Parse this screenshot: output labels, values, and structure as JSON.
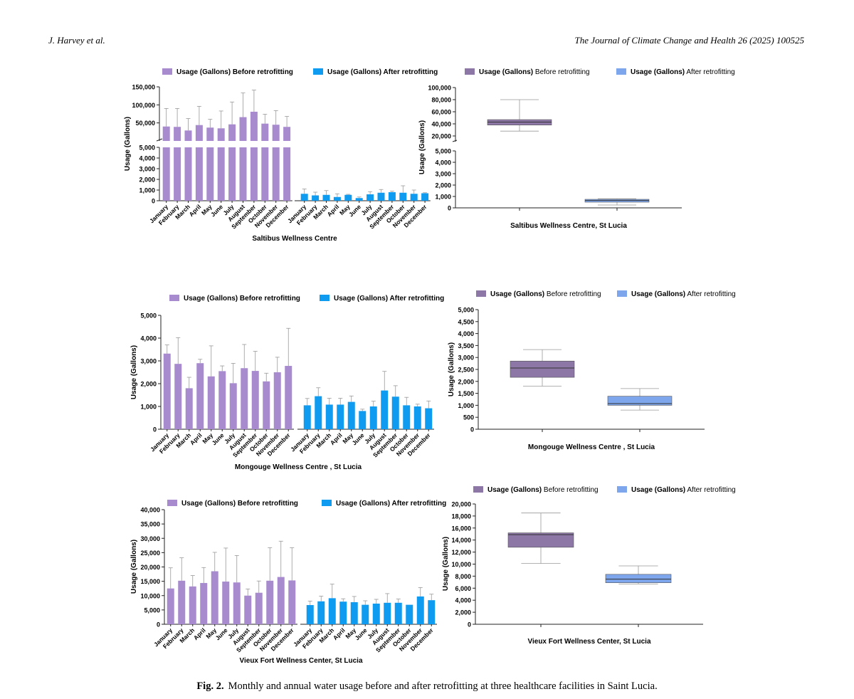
{
  "header": {
    "left": "J. Harvey et al.",
    "right": "The Journal of Climate Change and Health 26 (2025) 100525"
  },
  "caption": {
    "label": "Fig. 2.",
    "text": "Monthly and annual water usage before and after retrofitting at three healthcare facilities in Saint Lucia."
  },
  "colors": {
    "bar_before": "#a78bce",
    "bar_after": "#0f9bef",
    "box_before": "#8c77a6",
    "box_after": "#7ea6ec"
  },
  "chart_data": [
    {
      "type": "bar",
      "facility": "Saltibus Wellness Centre",
      "xlabel": "Saltibus Wellness Centre",
      "ylabel": "Usage (Gallons)",
      "broken_axis": true,
      "yticks_lower": [
        "0",
        "1,000",
        "2,000",
        "3,000",
        "4,000",
        "5,000"
      ],
      "yticks_upper": [
        "50,000",
        "100,000",
        "150,000"
      ],
      "legend": [
        {
          "label": "Usage (Gallons)  Before retrofitting"
        },
        {
          "label": "Usage (Gallons) After retrofitting"
        }
      ],
      "categories": [
        "January",
        "February",
        "March",
        "April",
        "May",
        "June",
        "July",
        "August",
        "September",
        "October",
        "November",
        "December"
      ],
      "series": [
        {
          "name": "Usage (Gallons)  Before retrofitting",
          "values": [
            40000,
            39000,
            29000,
            44000,
            37000,
            35000,
            46000,
            66000,
            81000,
            48000,
            45000,
            39000
          ],
          "errors": [
            50000,
            51000,
            33000,
            52000,
            23000,
            48000,
            62000,
            67000,
            60000,
            26000,
            39000,
            29000
          ]
        },
        {
          "name": "Usage (Gallons) After retrofitting",
          "values": [
            650,
            500,
            550,
            350,
            550,
            250,
            600,
            750,
            800,
            750,
            650,
            700
          ],
          "errors": [
            450,
            300,
            400,
            300,
            50,
            100,
            250,
            300,
            100,
            650,
            350,
            50
          ]
        }
      ]
    },
    {
      "type": "box",
      "facility": "Saltibus Wellness Centre, St Lucia",
      "xlabel": "Saltibus Wellness Centre,  St Lucia",
      "ylabel": "Usage (Gallons)",
      "broken_axis": true,
      "yticks_lower": [
        "0",
        "1,000",
        "2,000",
        "3,000",
        "4,000",
        "5,000"
      ],
      "yticks_upper": [
        "20,000",
        "40,000",
        "60,000",
        "80,000",
        "100,000"
      ],
      "legend": [
        {
          "label": "Usage (Gallons)  Before retrofitting"
        },
        {
          "label": "Usage (Gallons) After retrofitting"
        }
      ],
      "boxes": [
        {
          "name": "Before retrofitting",
          "min": 28000,
          "q1": 38000,
          "median": 43000,
          "q3": 47000,
          "max": 80000
        },
        {
          "name": "After retrofitting",
          "min": 250,
          "q1": 500,
          "median": 650,
          "q3": 750,
          "max": 800
        }
      ]
    },
    {
      "type": "bar",
      "facility": "Mongouge Wellness Centre , St Lucia",
      "xlabel": "Mongouge Wellness Centre , St Lucia",
      "ylabel": "Usage (Gallons)",
      "ylim": [
        0,
        5000
      ],
      "yticks": [
        "0",
        "1,000",
        "2,000",
        "3,000",
        "4,000",
        "5,000"
      ],
      "legend": [
        {
          "label": "Usage (Gallons)  Before retrofitting"
        },
        {
          "label": "Usage  (Gallons) After retrofitting"
        }
      ],
      "categories": [
        "January",
        "February",
        "March",
        "April",
        "May",
        "June",
        "July",
        "August",
        "September",
        "October",
        "November",
        "December"
      ],
      "series": [
        {
          "name": "Usage (Gallons)  Before retrofitting",
          "values": [
            3320,
            2870,
            1800,
            2900,
            2320,
            2550,
            2020,
            2680,
            2560,
            2100,
            2500,
            2780
          ],
          "errors": [
            380,
            1150,
            480,
            170,
            1340,
            230,
            870,
            1040,
            860,
            360,
            660,
            1650
          ]
        },
        {
          "name": "Usage  (Gallons) After retrofitting",
          "values": [
            1050,
            1450,
            1080,
            1080,
            1200,
            800,
            1000,
            1700,
            1430,
            1050,
            1000,
            920
          ],
          "errors": [
            300,
            370,
            280,
            280,
            260,
            80,
            230,
            840,
            480,
            350,
            100,
            320
          ]
        }
      ]
    },
    {
      "type": "box",
      "facility": "Mongouge Wellness Centre , St Lucia",
      "xlabel": "Mongouge Wellness Centre , St Lucia",
      "ylabel": "Usage (Gallons)",
      "ylim": [
        0,
        5000
      ],
      "yticks": [
        "0",
        "500",
        "1,000",
        "1,500",
        "2,000",
        "2,500",
        "3,000",
        "3,500",
        "4,000",
        "4,500",
        "5,000"
      ],
      "legend": [
        {
          "label": "Usage (Gallons)  Before retrofitting"
        },
        {
          "label": "Usage  (Gallons) After retrofitting"
        }
      ],
      "boxes": [
        {
          "name": "Before retrofitting",
          "min": 1800,
          "q1": 2170,
          "median": 2560,
          "q3": 2850,
          "max": 3330
        },
        {
          "name": "After retrofitting",
          "min": 800,
          "q1": 1000,
          "median": 1070,
          "q3": 1380,
          "max": 1700
        }
      ]
    },
    {
      "type": "bar",
      "facility": "Vieux Fort Wellness Center, St Lucia",
      "xlabel": "Vieux Fort Wellness Center, St Lucia",
      "ylabel": "Usage (Gallons)",
      "ylim": [
        0,
        40000
      ],
      "yticks": [
        "0",
        "5,000",
        "10,000",
        "15,000",
        "20,000",
        "25,000",
        "30,000",
        "35,000",
        "40,000"
      ],
      "legend": [
        {
          "label": "Usage (Gallons)  Before retrofitting"
        },
        {
          "label": "Usage  (Gallons) After retrofitting"
        }
      ],
      "categories": [
        "January",
        "February",
        "March",
        "April",
        "May",
        "June",
        "July",
        "August",
        "September",
        "October",
        "November",
        "December"
      ],
      "series": [
        {
          "name": "Usage (Gallons)  Before retrofitting",
          "values": [
            12500,
            15200,
            13200,
            14400,
            18500,
            14900,
            14600,
            10000,
            11000,
            15200,
            16500,
            15300
          ],
          "errors": [
            7200,
            8000,
            3800,
            5400,
            6600,
            11700,
            9400,
            2300,
            4100,
            11500,
            12500,
            11400
          ]
        },
        {
          "name": "Usage  (Gallons) After retrofitting",
          "values": [
            6700,
            8000,
            9100,
            7900,
            7700,
            6800,
            7200,
            7500,
            7500,
            6800,
            9700,
            8400
          ],
          "errors": [
            1400,
            1800,
            4900,
            1000,
            2000,
            1400,
            1500,
            3200,
            1300,
            0,
            3100,
            2100
          ]
        }
      ]
    },
    {
      "type": "box",
      "facility": "Vieux Fort Wellness Center, St Lucia",
      "xlabel": "Vieux Fort Wellness Center, St Lucia",
      "ylabel": "Usage (Gallons)",
      "ylim": [
        0,
        20000
      ],
      "yticks": [
        "0",
        "2,000",
        "4,000",
        "6,000",
        "8,000",
        "10,000",
        "12,000",
        "14,000",
        "16,000",
        "18,000",
        "20,000"
      ],
      "legend": [
        {
          "label": "Usage (Gallons)  Before retrofitting"
        },
        {
          "label": "Usage  (Gallons) After retrofitting"
        }
      ],
      "boxes": [
        {
          "name": "Before retrofitting",
          "min": 10100,
          "q1": 12800,
          "median": 14900,
          "q3": 15200,
          "max": 18500
        },
        {
          "name": "After retrofitting",
          "min": 6700,
          "q1": 6900,
          "median": 7500,
          "q3": 8300,
          "max": 9700
        }
      ]
    }
  ]
}
